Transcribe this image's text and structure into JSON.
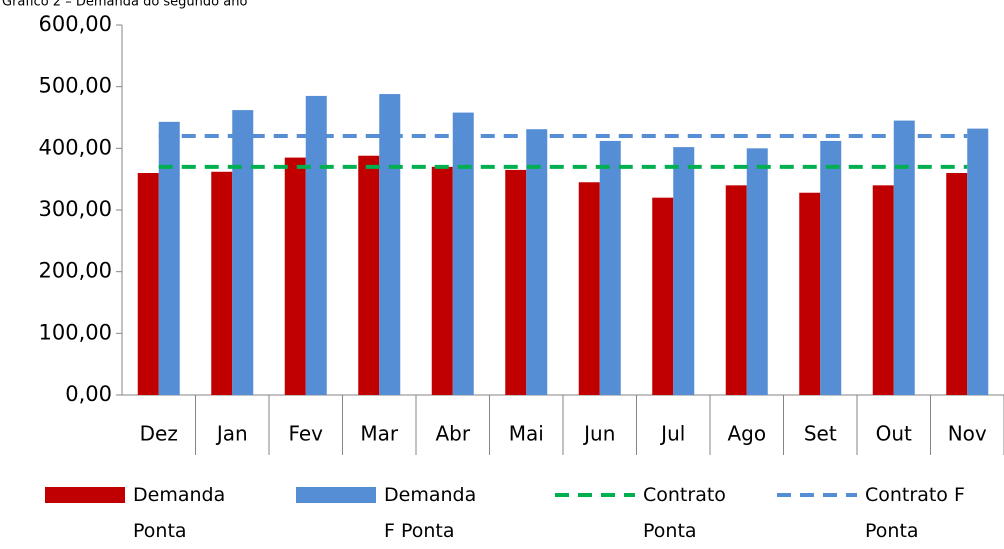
{
  "chart_data": {
    "type": "bar",
    "title": "Gráfico 2 – Demanda do segundo ano",
    "categories": [
      "Dez",
      "Jan",
      "Fev",
      "Mar",
      "Abr",
      "Mai",
      "Jun",
      "Jul",
      "Ago",
      "Set",
      "Out",
      "Nov"
    ],
    "series": [
      {
        "name": "Demanda Ponta",
        "type": "bar",
        "color": "#c00000",
        "values": [
          360,
          362,
          385,
          388,
          370,
          365,
          345,
          320,
          340,
          328,
          340,
          360
        ]
      },
      {
        "name": "Demanda F Ponta",
        "type": "bar",
        "color": "#558ed5",
        "values": [
          443,
          462,
          485,
          488,
          458,
          431,
          412,
          402,
          400,
          412,
          445,
          432
        ]
      },
      {
        "name": "Contrato Ponta",
        "type": "line",
        "dashed": true,
        "color": "#00b050",
        "values": [
          370,
          370,
          370,
          370,
          370,
          370,
          370,
          370,
          370,
          370,
          370,
          370
        ]
      },
      {
        "name": "Contrato F Ponta",
        "type": "line",
        "dashed": true,
        "color": "#558ed5",
        "values": [
          420,
          420,
          420,
          420,
          420,
          420,
          420,
          420,
          420,
          420,
          420,
          420
        ]
      }
    ],
    "ylim": [
      0,
      600
    ],
    "yticks": [
      {
        "value": 0,
        "label": "0,00"
      },
      {
        "value": 100,
        "label": "100,00"
      },
      {
        "value": 200,
        "label": "200,00"
      },
      {
        "value": 300,
        "label": "300,00"
      },
      {
        "value": 400,
        "label": "400,00"
      },
      {
        "value": 500,
        "label": "500,00"
      },
      {
        "value": 600,
        "label": "600,00"
      }
    ],
    "grid": false,
    "legend": "bottom"
  }
}
